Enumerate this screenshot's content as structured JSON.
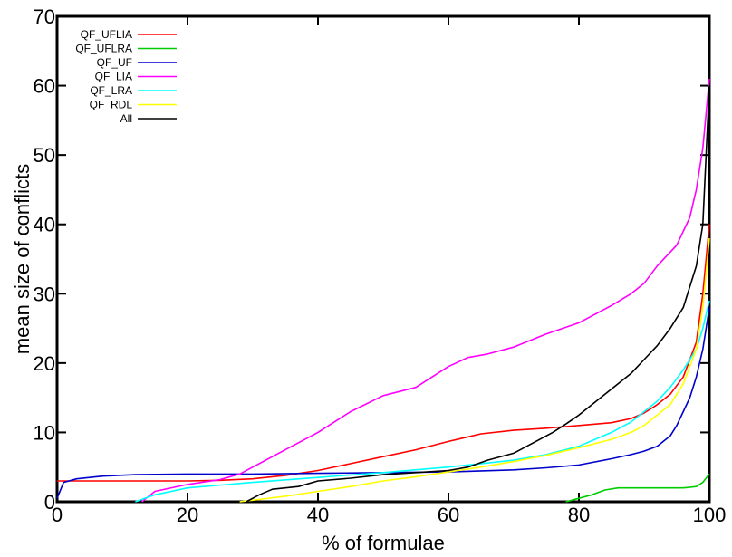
{
  "chart_data": {
    "type": "line",
    "title": "",
    "xlabel": "% of formulae",
    "ylabel": "mean size of conflicts",
    "xlim": [
      0,
      100
    ],
    "ylim": [
      0,
      70
    ],
    "x_ticks": [
      "0",
      "20",
      "40",
      "60",
      "80",
      "100"
    ],
    "y_ticks": [
      "0",
      "10",
      "20",
      "30",
      "40",
      "50",
      "60",
      "70"
    ],
    "x_tick_values": [
      0,
      20,
      40,
      60,
      80,
      100
    ],
    "y_tick_values": [
      0,
      10,
      20,
      30,
      40,
      50,
      60,
      70
    ],
    "grid": false,
    "legend_position": "top-left",
    "series": [
      {
        "name": "QF_UFLIA",
        "color": "#ff0000",
        "points": [
          [
            0,
            3
          ],
          [
            10,
            3
          ],
          [
            20,
            3
          ],
          [
            25,
            3.1
          ],
          [
            30,
            3.3
          ],
          [
            35,
            3.8
          ],
          [
            40,
            4.5
          ],
          [
            45,
            5.5
          ],
          [
            50,
            6.5
          ],
          [
            55,
            7.5
          ],
          [
            60,
            8.7
          ],
          [
            65,
            9.8
          ],
          [
            70,
            10.3
          ],
          [
            75,
            10.6
          ],
          [
            80,
            11
          ],
          [
            85,
            11.4
          ],
          [
            88,
            12
          ],
          [
            90,
            12.8
          ],
          [
            92,
            14
          ],
          [
            94,
            15.5
          ],
          [
            96,
            18
          ],
          [
            98,
            23
          ],
          [
            99,
            30
          ],
          [
            100,
            40
          ]
        ]
      },
      {
        "name": "QF_UFLRA",
        "color": "#00cc00",
        "points": [
          [
            78,
            0
          ],
          [
            80,
            0.5
          ],
          [
            82,
            1
          ],
          [
            84,
            1.7
          ],
          [
            86,
            2
          ],
          [
            90,
            2
          ],
          [
            96,
            2
          ],
          [
            98,
            2.2
          ],
          [
            99,
            2.8
          ],
          [
            100,
            4
          ]
        ]
      },
      {
        "name": "QF_UF",
        "color": "#0000cc",
        "points": [
          [
            0,
            0.5
          ],
          [
            1,
            2.8
          ],
          [
            3,
            3.3
          ],
          [
            7,
            3.7
          ],
          [
            12,
            3.9
          ],
          [
            20,
            4
          ],
          [
            30,
            4
          ],
          [
            40,
            4.1
          ],
          [
            50,
            4.2
          ],
          [
            60,
            4.3
          ],
          [
            70,
            4.6
          ],
          [
            75,
            4.9
          ],
          [
            80,
            5.3
          ],
          [
            85,
            6.2
          ],
          [
            88,
            6.8
          ],
          [
            90,
            7.3
          ],
          [
            92,
            8
          ],
          [
            94,
            9.5
          ],
          [
            95,
            11
          ],
          [
            96,
            13
          ],
          [
            97,
            15
          ],
          [
            98,
            18
          ],
          [
            99,
            22
          ],
          [
            100,
            28
          ]
        ]
      },
      {
        "name": "QF_LIA",
        "color": "#ff00ff",
        "points": [
          [
            13,
            0
          ],
          [
            15,
            1.5
          ],
          [
            20,
            2.5
          ],
          [
            25,
            3.2
          ],
          [
            28,
            4
          ],
          [
            30,
            5
          ],
          [
            33,
            6.5
          ],
          [
            36,
            8
          ],
          [
            40,
            10
          ],
          [
            45,
            13
          ],
          [
            50,
            15.3
          ],
          [
            55,
            16.5
          ],
          [
            60,
            19.5
          ],
          [
            63,
            20.8
          ],
          [
            66,
            21.3
          ],
          [
            70,
            22.3
          ],
          [
            75,
            24.2
          ],
          [
            80,
            25.8
          ],
          [
            85,
            28.3
          ],
          [
            88,
            30
          ],
          [
            90,
            31.5
          ],
          [
            92,
            34
          ],
          [
            95,
            37
          ],
          [
            97,
            41
          ],
          [
            98,
            45
          ],
          [
            99,
            51
          ],
          [
            100,
            61
          ]
        ]
      },
      {
        "name": "QF_LRA",
        "color": "#00ffff",
        "points": [
          [
            12,
            0
          ],
          [
            15,
            1
          ],
          [
            20,
            2
          ],
          [
            30,
            2.8
          ],
          [
            40,
            3.5
          ],
          [
            50,
            4.2
          ],
          [
            60,
            5
          ],
          [
            65,
            5.5
          ],
          [
            70,
            6
          ],
          [
            75,
            6.8
          ],
          [
            80,
            8
          ],
          [
            85,
            10
          ],
          [
            88,
            11.5
          ],
          [
            90,
            13
          ],
          [
            92,
            14.5
          ],
          [
            94,
            16.5
          ],
          [
            96,
            19
          ],
          [
            98,
            22
          ],
          [
            99,
            25
          ],
          [
            100,
            29
          ]
        ]
      },
      {
        "name": "QF_RDL",
        "color": "#ffff00",
        "points": [
          [
            28,
            0
          ],
          [
            35,
            0.8
          ],
          [
            40,
            1.5
          ],
          [
            45,
            2.2
          ],
          [
            50,
            3
          ],
          [
            55,
            3.6
          ],
          [
            60,
            4.3
          ],
          [
            65,
            5
          ],
          [
            70,
            5.8
          ],
          [
            75,
            6.7
          ],
          [
            80,
            7.8
          ],
          [
            85,
            9
          ],
          [
            88,
            10
          ],
          [
            90,
            11
          ],
          [
            92,
            12.5
          ],
          [
            94,
            14
          ],
          [
            96,
            17
          ],
          [
            98,
            22
          ],
          [
            99,
            28
          ],
          [
            100,
            38
          ]
        ]
      },
      {
        "name": "All",
        "color": "#000000",
        "points": [
          [
            29,
            0
          ],
          [
            31,
            1
          ],
          [
            33,
            1.8
          ],
          [
            35,
            2
          ],
          [
            37,
            2.2
          ],
          [
            40,
            3
          ],
          [
            45,
            3.4
          ],
          [
            50,
            3.9
          ],
          [
            55,
            4.2
          ],
          [
            60,
            4.5
          ],
          [
            63,
            5
          ],
          [
            66,
            6
          ],
          [
            70,
            7
          ],
          [
            73,
            8.5
          ],
          [
            76,
            10
          ],
          [
            78,
            11.2
          ],
          [
            80,
            12.5
          ],
          [
            82,
            14
          ],
          [
            84,
            15.5
          ],
          [
            86,
            17
          ],
          [
            88,
            18.5
          ],
          [
            90,
            20.5
          ],
          [
            92,
            22.5
          ],
          [
            94,
            25
          ],
          [
            96,
            28
          ],
          [
            97,
            31
          ],
          [
            98,
            34
          ],
          [
            99,
            40
          ],
          [
            100,
            60
          ]
        ]
      }
    ]
  }
}
